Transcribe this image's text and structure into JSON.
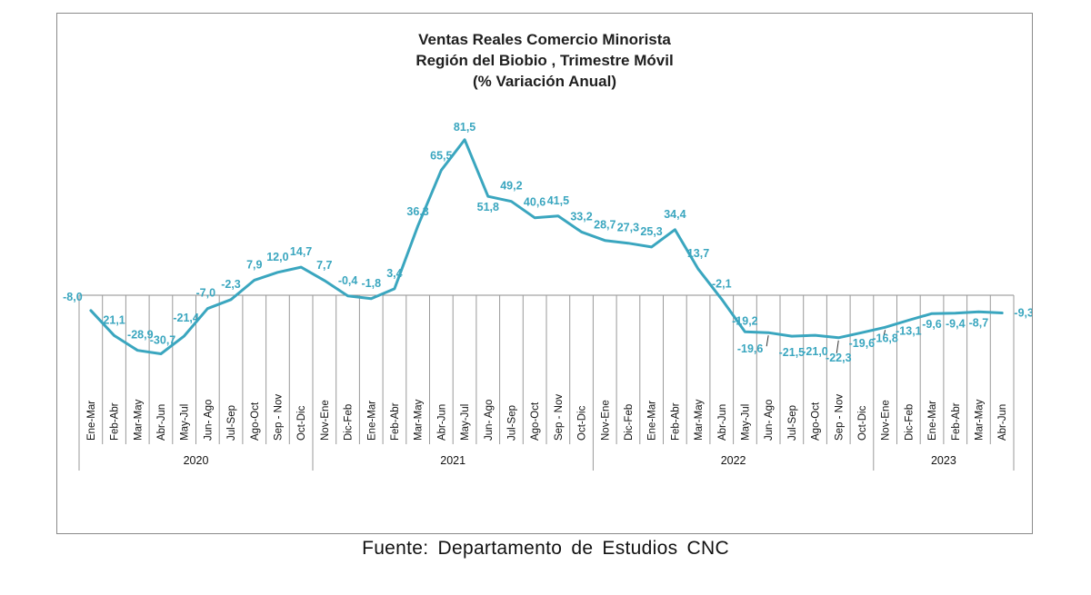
{
  "source": "Fuente:  Departamento  de  Estudios  CNC",
  "chart_data": {
    "type": "line",
    "title": [
      "Ventas Reales Comercio Minorista",
      "Región del Biobio , Trimestre Móvil",
      "(% Variación Anual)"
    ],
    "color": "#3aa6bf",
    "categories": [
      "Ene-Mar",
      "Feb-Abr",
      "Mar-May",
      "Abr-Jun",
      "May-Jul",
      "Jun- Ago",
      "Jul-Sep",
      "Ago-Oct",
      "Sep - Nov",
      "Oct-Dic",
      "Nov-Ene",
      "Dic-Feb",
      "Ene-Mar",
      "Feb-Abr",
      "Mar-May",
      "Abr-Jun",
      "May-Jul",
      "Jun- Ago",
      "Jul-Sep",
      "Ago-Oct",
      "Sep - Nov",
      "Oct-Dic",
      "Nov-Ene",
      "Dic-Feb",
      "Ene-Mar",
      "Feb-Abr",
      "Mar-May",
      "Abr-Jun",
      "May-Jul",
      "Jun- Ago",
      "Jul-Sep",
      "Ago-Oct",
      "Sep - Nov",
      "Oct-Dic",
      "Nov-Ene",
      "Dic-Feb",
      "Ene-Mar",
      "Feb-Abr",
      "Mar-May",
      "Abr-Jun"
    ],
    "years": [
      {
        "label": "2020",
        "start": 0,
        "end": 10
      },
      {
        "label": "2021",
        "start": 10,
        "end": 22
      },
      {
        "label": "2022",
        "start": 22,
        "end": 34
      },
      {
        "label": "2023",
        "start": 34,
        "end": 40
      }
    ],
    "values": [
      -8.0,
      -21.1,
      -28.9,
      -30.7,
      -21.4,
      -7.0,
      -2.3,
      7.9,
      12.0,
      14.7,
      7.7,
      -0.4,
      -1.8,
      3.4,
      36.3,
      65.5,
      81.5,
      51.8,
      49.2,
      40.6,
      41.5,
      33.2,
      28.7,
      27.3,
      25.3,
      34.4,
      13.7,
      -2.1,
      -19.2,
      -19.6,
      -21.5,
      -21.0,
      -22.3,
      -19.6,
      -16.8,
      -13.1,
      -9.6,
      -9.4,
      -8.7,
      -9.3
    ],
    "labels": [
      "-8,0",
      "-21,1",
      "-28,9",
      "-30,7",
      "-21,4",
      "-7,0",
      "-2,3",
      "7,9",
      "12,0",
      "14,7",
      "7,7",
      "-0,4",
      "-1,8",
      "3,4",
      "36,3",
      "65,5",
      "81,5",
      "51,8",
      "49,2",
      "40,6",
      "41,5",
      "33,2",
      "28,7",
      "27,3",
      "25,3",
      "34,4",
      "13,7",
      "-2,1",
      "-19,2",
      "-19,6",
      "-21,5",
      "-21,0",
      "-22,3",
      "-19,6",
      "-16,8",
      "-13,1",
      "-9,6",
      "-9,4",
      "-8,7",
      "-9,3"
    ],
    "ylim": [
      -35,
      85
    ],
    "grid": false,
    "legend": "none"
  }
}
